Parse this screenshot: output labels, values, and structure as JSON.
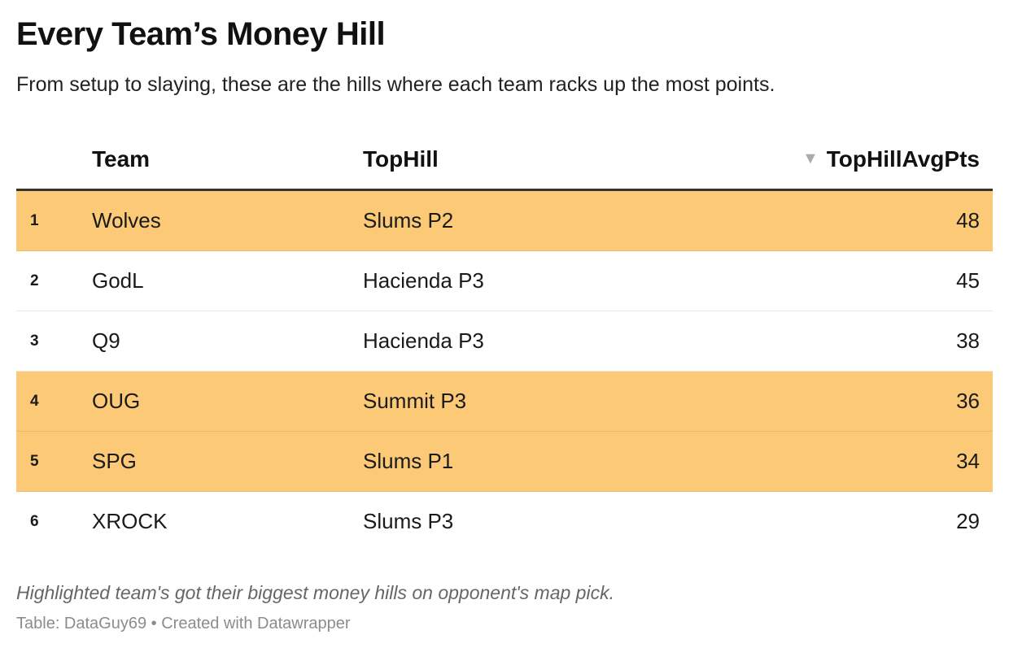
{
  "title": "Every Team’s Money Hill",
  "subtitle": "From setup to slaying, these are the hills where each team racks up the most points.",
  "chart_data": {
    "type": "table",
    "columns": [
      "",
      "Team",
      "TopHill",
      "TopHillAvgPts"
    ],
    "sort": {
      "column": "TopHillAvgPts",
      "direction": "descending",
      "icon": "sort-descending-triangle-icon"
    },
    "highlight_color": "#fcc976",
    "rows": [
      {
        "rank": "1",
        "team": "Wolves",
        "top_hill": "Slums P2",
        "avg_pts": 48,
        "highlighted": true
      },
      {
        "rank": "2",
        "team": "GodL",
        "top_hill": "Hacienda P3",
        "avg_pts": 45,
        "highlighted": false
      },
      {
        "rank": "3",
        "team": "Q9",
        "top_hill": "Hacienda P3",
        "avg_pts": 38,
        "highlighted": false
      },
      {
        "rank": "4",
        "team": "OUG",
        "top_hill": "Summit P3",
        "avg_pts": 36,
        "highlighted": true
      },
      {
        "rank": "5",
        "team": "SPG",
        "top_hill": "Slums P1",
        "avg_pts": 34,
        "highlighted": true
      },
      {
        "rank": "6",
        "team": "XROCK",
        "top_hill": "Slums P3",
        "avg_pts": 29,
        "highlighted": false
      }
    ]
  },
  "notes": "Highlighted team's got their biggest money hills on opponent's map pick.",
  "source": "Table: DataGuy69 • Created with Datawrapper"
}
